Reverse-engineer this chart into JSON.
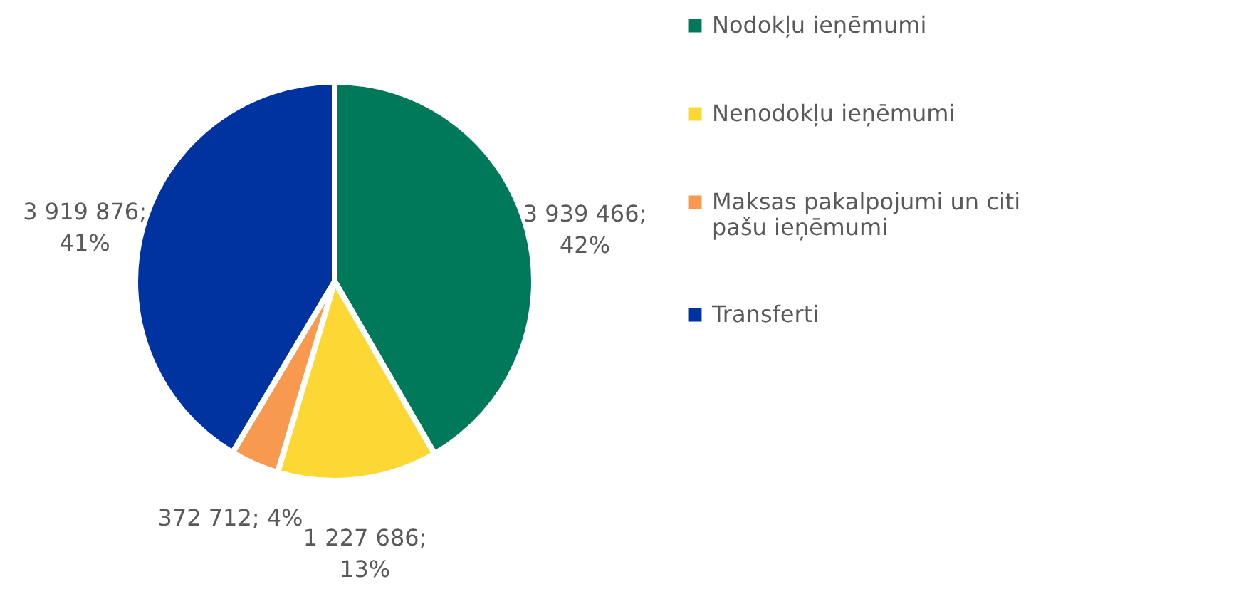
{
  "chart_data": {
    "type": "pie",
    "categories": [
      "Nodokļu ieņēmumi",
      "Nenodokļu ieņēmumi",
      "Maksas pakalpojumi un citi pašu ieņēmumi",
      "Transferti"
    ],
    "values": [
      3939466,
      1227686,
      372712,
      3919876
    ],
    "colors": [
      "#00795a",
      "#fdd835",
      "#f79a50",
      "#0033a0"
    ],
    "value_labels": [
      "3 939 466; 42%",
      "1 227 686; 13%",
      "372 712; 4%",
      "3 919 876; 41%"
    ],
    "legend": "right"
  }
}
